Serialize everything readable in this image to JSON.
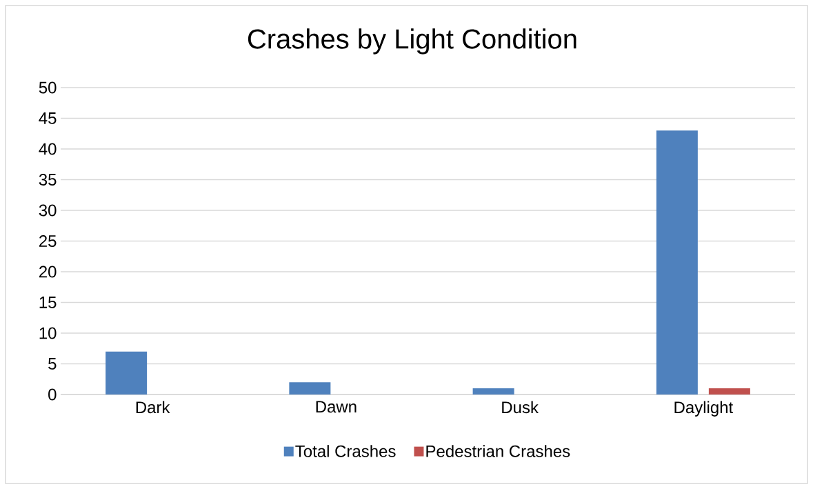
{
  "chart_data": {
    "type": "bar",
    "title": "Crashes by Light Condition",
    "categories": [
      "Dark",
      "Dawn",
      "Dusk",
      "Daylight"
    ],
    "series": [
      {
        "name": "Total Crashes",
        "color": "#4f81bd",
        "values": [
          7,
          2,
          1,
          43
        ]
      },
      {
        "name": "Pedestrian Crashes",
        "color": "#c0504d",
        "values": [
          0,
          0,
          0,
          1
        ]
      }
    ],
    "ylim": [
      0,
      50
    ],
    "yticks": [
      0,
      5,
      10,
      15,
      20,
      25,
      30,
      35,
      40,
      45,
      50
    ],
    "grid": "y",
    "legend": "bottom"
  }
}
